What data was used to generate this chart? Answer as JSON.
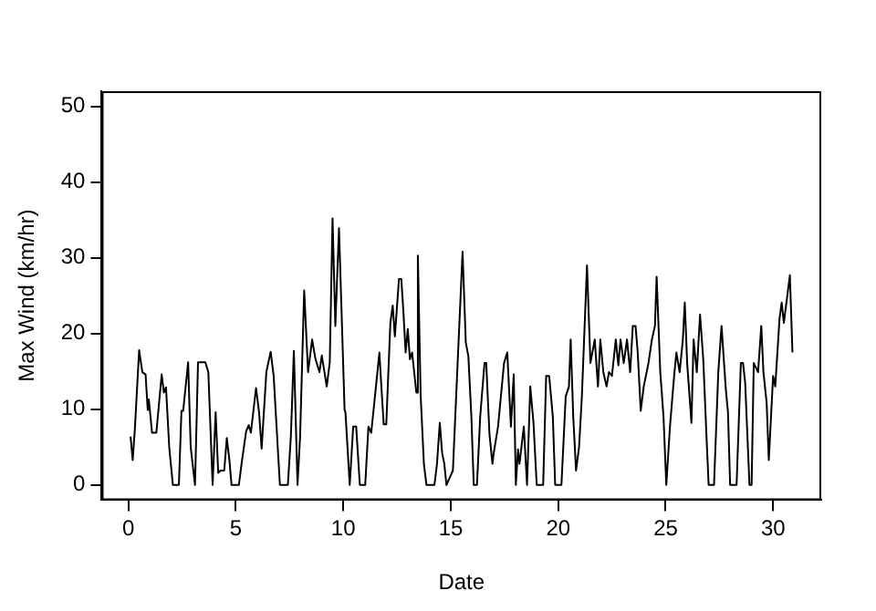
{
  "chart_data": {
    "type": "line",
    "xlabel": "Date",
    "ylabel": "Max Wind (km/hr)",
    "xlim": [
      -1.24,
      32.24
    ],
    "xticks": [
      0,
      5,
      10,
      15,
      20,
      25,
      30
    ],
    "ylim": [
      -2,
      52
    ],
    "yticks": [
      0,
      10,
      20,
      30,
      40,
      50
    ],
    "grid": false,
    "legend": false,
    "marker": "none",
    "line_style": "solid",
    "series": [
      {
        "color": "#000000",
        "x": [
          0.1,
          0.2,
          0.3,
          0.5,
          0.65,
          0.8,
          0.9,
          0.95,
          1.1,
          1.3,
          1.55,
          1.65,
          1.75,
          1.9,
          2.07,
          2.35,
          2.47,
          2.55,
          2.78,
          2.9,
          3.1,
          3.24,
          3.58,
          3.72,
          3.92,
          4.06,
          4.18,
          4.29,
          4.46,
          4.58,
          4.7,
          4.8,
          5.14,
          5.29,
          5.48,
          5.6,
          5.7,
          5.94,
          6.08,
          6.2,
          6.42,
          6.62,
          6.76,
          7.05,
          7.42,
          7.56,
          7.7,
          7.87,
          7.99,
          8.18,
          8.36,
          8.55,
          8.7,
          8.89,
          9.0,
          9.23,
          9.37,
          9.5,
          9.63,
          9.8,
          10.06,
          10.1,
          10.3,
          10.46,
          10.6,
          10.77,
          11.02,
          11.17,
          11.3,
          11.53,
          11.68,
          11.75,
          11.88,
          12.0,
          12.19,
          12.3,
          12.4,
          12.59,
          12.7,
          12.8,
          12.9,
          13.0,
          13.1,
          13.2,
          13.4,
          13.47,
          13.6,
          13.75,
          13.87,
          14.24,
          14.36,
          14.49,
          14.6,
          14.7,
          14.8,
          15.1,
          15.32,
          15.55,
          15.7,
          15.82,
          15.96,
          16.07,
          16.22,
          16.37,
          16.57,
          16.65,
          16.8,
          16.94,
          17.0,
          17.2,
          17.48,
          17.63,
          17.8,
          17.93,
          18.03,
          18.13,
          18.2,
          18.4,
          18.55,
          18.7,
          18.85,
          19.0,
          19.3,
          19.44,
          19.58,
          19.75,
          19.86,
          20.15,
          20.35,
          20.5,
          20.58,
          20.7,
          20.83,
          20.97,
          21.1,
          21.34,
          21.5,
          21.7,
          21.85,
          21.96,
          22.1,
          22.25,
          22.36,
          22.5,
          22.68,
          22.8,
          22.9,
          23.05,
          23.2,
          23.35,
          23.47,
          23.6,
          23.7,
          23.84,
          23.98,
          24.2,
          24.36,
          24.5,
          24.58,
          24.75,
          24.9,
          25.03,
          25.2,
          25.4,
          25.5,
          25.65,
          25.8,
          25.89,
          26.0,
          26.2,
          26.3,
          26.45,
          26.6,
          26.75,
          26.9,
          27.0,
          27.25,
          27.45,
          27.6,
          27.8,
          27.9,
          28.0,
          28.3,
          28.5,
          28.6,
          28.7,
          28.9,
          29.0,
          29.1,
          29.3,
          29.45,
          29.55,
          29.7,
          29.8,
          30.0,
          30.1,
          30.3,
          30.4,
          30.5,
          30.78,
          30.9
        ],
        "values": [
          6.4,
          3.3,
          7.3,
          17.8,
          14.9,
          14.6,
          9.9,
          11.3,
          6.9,
          6.9,
          14.6,
          12.2,
          12.9,
          5,
          0,
          0,
          9.8,
          9.8,
          16.2,
          5,
          0,
          16.2,
          16.2,
          14.9,
          0,
          9.6,
          1.6,
          1.9,
          1.9,
          6.2,
          3.3,
          0,
          0,
          3.3,
          7.1,
          7.9,
          6.9,
          12.8,
          9.6,
          4.8,
          14.9,
          17.6,
          14.4,
          0,
          0,
          6.4,
          17.7,
          0,
          6.4,
          25.7,
          14.9,
          19.2,
          16.7,
          14.9,
          17.1,
          13,
          16.2,
          35.2,
          21,
          33.9,
          9.9,
          9.6,
          0,
          7.7,
          7.7,
          0,
          0,
          7.7,
          6.9,
          13.3,
          17.5,
          14,
          8,
          8,
          21.4,
          23.7,
          19.6,
          27.2,
          27.2,
          22.7,
          17.5,
          20.6,
          16.6,
          17.5,
          12.2,
          30.3,
          11.8,
          2.8,
          0,
          0,
          2.8,
          8.2,
          4.2,
          2.8,
          0,
          1.9,
          16.1,
          30.8,
          18.8,
          17,
          9,
          0,
          0,
          9,
          16.1,
          16.1,
          6.8,
          2.8,
          4.2,
          7.7,
          16.1,
          17.5,
          7.7,
          14.6,
          0,
          4.7,
          2.8,
          7.7,
          0,
          13,
          8.2,
          0,
          0,
          14.4,
          14.4,
          9,
          0,
          0,
          11.7,
          13,
          19.2,
          9,
          1.9,
          5,
          11.6,
          29,
          16.1,
          19.2,
          13,
          19.2,
          14.9,
          13,
          14.9,
          14.4,
          19.2,
          15.8,
          19.2,
          16.1,
          19.2,
          14.9,
          21,
          21,
          17.5,
          9.8,
          13,
          16.1,
          19.2,
          21,
          27.5,
          14.9,
          9,
          0,
          7.7,
          14.6,
          17.5,
          14.9,
          19.2,
          24.1,
          16.1,
          8.2,
          19.2,
          14.9,
          22.5,
          16.6,
          6.4,
          0,
          0,
          14.9,
          21,
          12.6,
          9.6,
          0,
          0,
          16.1,
          16.1,
          13.5,
          0,
          0,
          16.1,
          14.9,
          21,
          14.9,
          10.8,
          3.3,
          14.4,
          13,
          22,
          24.1,
          21.4,
          27.7,
          17.5
        ]
      }
    ]
  }
}
